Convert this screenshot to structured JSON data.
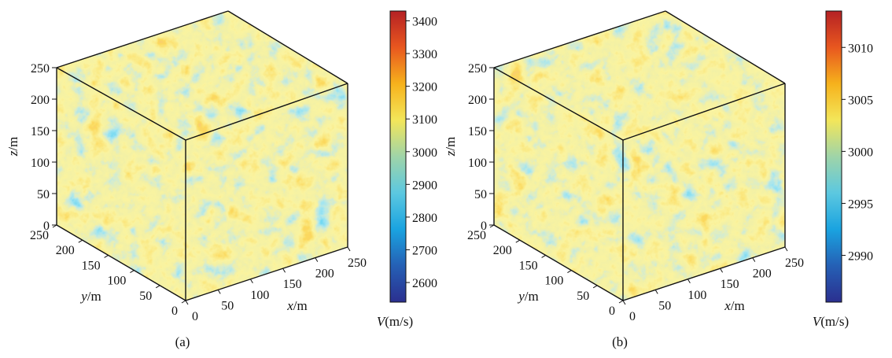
{
  "chart_data": [
    {
      "type": "volume-slice",
      "panel_label": "(a)",
      "x_axis": {
        "label_italic": "x",
        "label_unit": "/m",
        "range": [
          0,
          250
        ],
        "ticks": [
          "0",
          "50",
          "100",
          "150",
          "200",
          "250"
        ]
      },
      "y_axis": {
        "label_italic": "y",
        "label_unit": "/m",
        "range": [
          0,
          250
        ],
        "ticks": [
          "0",
          "50",
          "100",
          "150",
          "200",
          "250"
        ]
      },
      "z_axis": {
        "label_italic": "z",
        "label_unit": "/m",
        "range": [
          0,
          250
        ],
        "ticks": [
          "0",
          "50",
          "100",
          "150",
          "200",
          "250"
        ]
      },
      "colorbar": {
        "label_italic": "V",
        "label_unit": "(m/s)",
        "range": [
          2540,
          3430
        ],
        "ticks": [
          "2600",
          "2700",
          "2800",
          "2900",
          "3000",
          "3100",
          "3200",
          "3300",
          "3400"
        ]
      }
    },
    {
      "type": "volume-slice",
      "panel_label": "(b)",
      "x_axis": {
        "label_italic": "x",
        "label_unit": "/m",
        "range": [
          0,
          250
        ],
        "ticks": [
          "0",
          "50",
          "100",
          "150",
          "200",
          "250"
        ]
      },
      "y_axis": {
        "label_italic": "y",
        "label_unit": "/m",
        "range": [
          0,
          250
        ],
        "ticks": [
          "0",
          "50",
          "100",
          "150",
          "200",
          "250"
        ]
      },
      "z_axis": {
        "label_italic": "z",
        "label_unit": "/m",
        "range": [
          0,
          250
        ],
        "ticks": [
          "0",
          "50",
          "100",
          "150",
          "200",
          "250"
        ]
      },
      "colorbar": {
        "label_italic": "V",
        "label_unit": "(m/s)",
        "range": [
          2985.5,
          3013.5
        ],
        "ticks": [
          "2990",
          "2995",
          "3000",
          "3005",
          "3010"
        ]
      }
    }
  ],
  "colormap": [
    "#2b2f8f",
    "#2560b5",
    "#1aa3e0",
    "#5cc8e0",
    "#9fd4a8",
    "#f3e65a",
    "#f6b21c",
    "#e8571f",
    "#b52124"
  ]
}
